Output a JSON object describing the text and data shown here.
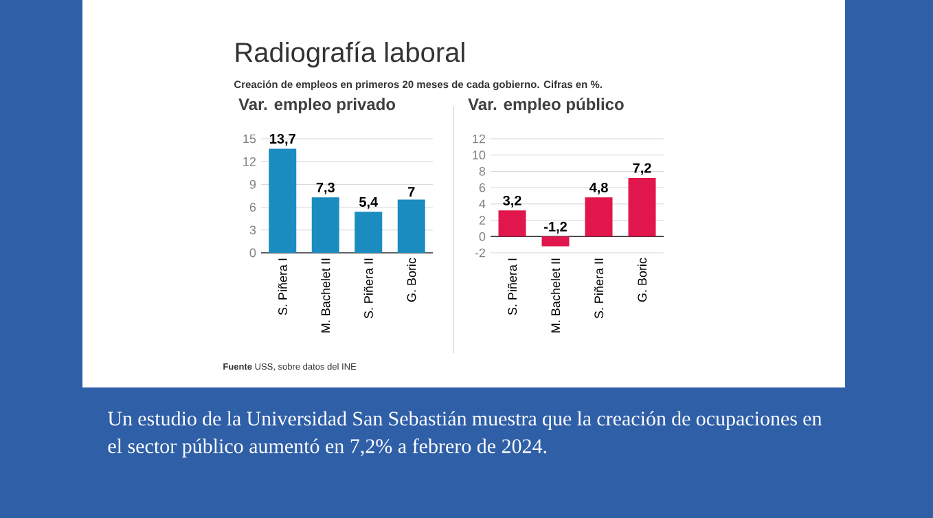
{
  "chart_data": [
    {
      "type": "bar",
      "title": "Var. empleo privado",
      "categories": [
        "S. Piñera I",
        "M. Bachelet II",
        "S. Piñera II",
        "G. Boric"
      ],
      "values": [
        13.7,
        7.3,
        5.4,
        7
      ],
      "value_labels": [
        "13,7",
        "7,3",
        "5,4",
        "7"
      ],
      "color": "#1a8cc0",
      "ylim": [
        0,
        15
      ],
      "yticks": [
        0,
        3,
        6,
        9,
        12,
        15
      ],
      "grid": "y",
      "annotations": [
        "Radiografía laboral",
        "Creación de empleos en primeros 20 meses de cada gobierno. Cifras en %."
      ]
    },
    {
      "type": "bar",
      "title": "Var. empleo público",
      "categories": [
        "S. Piñera I",
        "M. Bachelet II",
        "S. Piñera II",
        "G. Boric"
      ],
      "values": [
        3.2,
        -1.2,
        4.8,
        7.2
      ],
      "value_labels": [
        "3,2",
        "-1,2",
        "4,8",
        "7,2"
      ],
      "color": "#e0164c",
      "ylim": [
        -2,
        12
      ],
      "yticks": [
        -2,
        0,
        2,
        4,
        6,
        8,
        10,
        12
      ],
      "grid": "y",
      "annotations": [
        "**Fuente** USS, sobre datos del INE",
        "Un estudio de la Universidad San Sebastián muestra que la creación de ocupaciones en el sector público aumentó en 7,2% a febrero de 2024."
      ]
    }
  ]
}
